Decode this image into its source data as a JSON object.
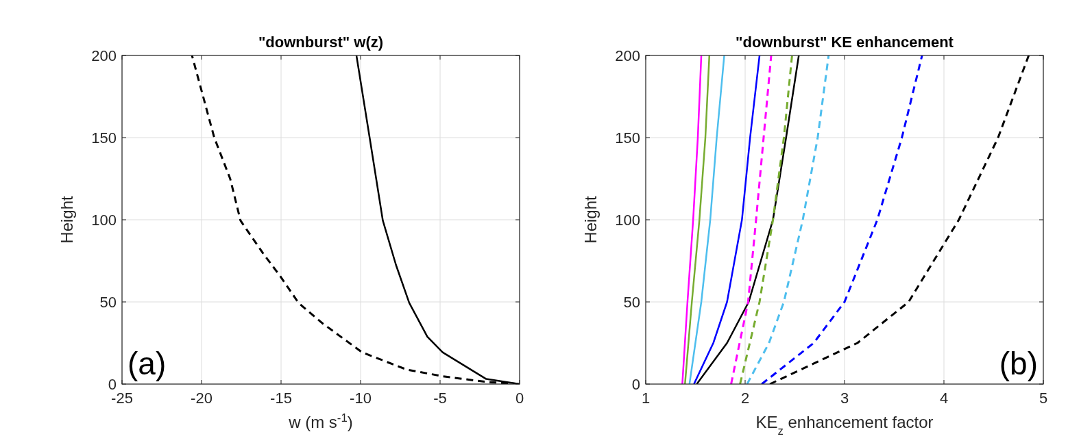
{
  "chart_data": [
    {
      "type": "line",
      "title": "\"downburst\" w(z)",
      "xlabel": "w (m s$^{-1}$)",
      "ylabel": "Height",
      "xlim": [
        -25,
        0
      ],
      "xticks": [
        -25,
        -20,
        -15,
        -10,
        -5,
        0
      ],
      "ylim": [
        0,
        200
      ],
      "yticks": [
        0,
        50,
        100,
        150,
        200
      ],
      "grid": true,
      "annotations": [
        "(a)"
      ],
      "series": [
        {
          "color": "#000000",
          "line_style": "dashed",
          "x": [
            0,
            -2.1,
            -4.8,
            -7.1,
            -9.9,
            -12.4,
            -13.9,
            -15.06,
            -16.06,
            -17.55,
            -18.2,
            -19.2,
            -20.6
          ],
          "values": [
            0,
            1.3,
            4.7,
            8.8,
            19.3,
            37,
            49.4,
            65.8,
            78.6,
            99.5,
            125,
            150,
            200
          ]
        },
        {
          "color": "#000000",
          "line_style": "solid",
          "x": [
            0,
            -2.1,
            -4.84,
            -5.8,
            -6.94,
            -7.77,
            -8.6,
            -9.43,
            -10.26
          ],
          "values": [
            0,
            3.1,
            19.3,
            28.8,
            49.4,
            72.4,
            99.5,
            150,
            200
          ]
        }
      ]
    },
    {
      "type": "line",
      "title": "\"downburst\" KE enhancement",
      "xlabel": "KE$_{z}$ enhancement factor",
      "ylabel": "Height",
      "xlim": [
        1,
        5
      ],
      "xticks": [
        1,
        2,
        3,
        4,
        5
      ],
      "ylim": [
        0,
        200
      ],
      "yticks": [
        0,
        50,
        100,
        150,
        200
      ],
      "grid": true,
      "annotations": [
        "(b)"
      ],
      "series": [
        {
          "color": "#ff00ff",
          "line_style": "solid",
          "x": [
            1.368,
            1.42,
            1.477,
            1.524,
            1.559
          ],
          "values": [
            0,
            50,
            100,
            150,
            200
          ]
        },
        {
          "color": "#77ac30",
          "line_style": "solid",
          "x": [
            1.395,
            1.464,
            1.54,
            1.6,
            1.64
          ],
          "values": [
            0,
            50,
            100,
            150,
            200
          ]
        },
        {
          "color": "#4dbeee",
          "line_style": "solid",
          "x": [
            1.44,
            1.559,
            1.649,
            1.714,
            1.79
          ],
          "values": [
            0,
            50,
            100,
            150,
            200
          ]
        },
        {
          "color": "#0000ff",
          "line_style": "solid",
          "x": [
            1.485,
            1.68,
            1.818,
            1.968,
            2.05,
            2.145
          ],
          "values": [
            0,
            25,
            50,
            100,
            150,
            200
          ]
        },
        {
          "color": "#000000",
          "line_style": "solid",
          "x": [
            1.513,
            1.818,
            2.036,
            2.28,
            2.412,
            2.54
          ],
          "values": [
            0,
            25,
            50,
            100,
            150,
            200
          ]
        },
        {
          "color": "#ff00ff",
          "line_style": "dashed",
          "x": [
            1.859,
            2.03,
            2.11,
            2.186,
            2.262
          ],
          "values": [
            0,
            50,
            100,
            150,
            200
          ]
        },
        {
          "color": "#77ac30",
          "line_style": "dashed",
          "x": [
            1.949,
            2.145,
            2.28,
            2.39,
            2.472
          ],
          "values": [
            0,
            50,
            100,
            150,
            200
          ]
        },
        {
          "color": "#4dbeee",
          "line_style": "dashed",
          "x": [
            2.02,
            2.24,
            2.39,
            2.58,
            2.73,
            2.84
          ],
          "values": [
            0,
            25,
            50,
            100,
            150,
            200
          ]
        },
        {
          "color": "#0000ff",
          "line_style": "dashed",
          "x": [
            2.167,
            2.69,
            3.0,
            3.33,
            3.577,
            3.78
          ],
          "values": [
            0,
            25,
            50,
            100,
            150,
            200
          ]
        },
        {
          "color": "#000000",
          "line_style": "dashed",
          "x": [
            2.249,
            3.13,
            3.645,
            4.15,
            4.545,
            4.853
          ],
          "values": [
            0,
            25,
            50,
            100,
            150,
            200
          ]
        }
      ]
    }
  ]
}
